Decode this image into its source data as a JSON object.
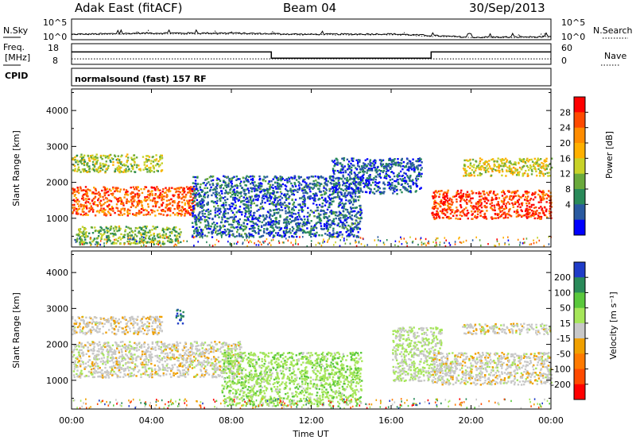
{
  "header": {
    "station": "Adak East (fitACF)",
    "beam": "Beam 04",
    "date": "30/Sep/2013"
  },
  "noise_panel": {
    "left_label": "N.Sky",
    "right_label": "N.Search",
    "left_ticks": [
      "10^5",
      "10^0"
    ],
    "right_ticks": [
      "10^5",
      "10^0"
    ]
  },
  "freq_panel": {
    "left_label_1": "Freq.",
    "left_label_2": "[MHz]",
    "right_label": "Nave",
    "left_ticks": [
      "18",
      "8"
    ],
    "right_ticks": [
      "60",
      "0"
    ]
  },
  "cpid": {
    "label": "CPID",
    "value": "normalsound (fast) 157 RF"
  },
  "x_axis": {
    "label": "Time UT",
    "ticks": [
      "00:00",
      "04:00",
      "08:00",
      "12:00",
      "16:00",
      "20:00",
      "00:00"
    ]
  },
  "power_colorbar": {
    "label": "Power [dB]",
    "ticks": [
      "28",
      "24",
      "20",
      "16",
      "12",
      "8",
      "4"
    ],
    "colors": [
      "#ff0000",
      "#ff4a00",
      "#ff8c00",
      "#ffb000",
      "#c8d228",
      "#6aaa3c",
      "#2a8a5a",
      "#2a5aa0",
      "#0000ff"
    ]
  },
  "velocity_colorbar": {
    "label": "Velocity [m s⁻¹]",
    "ticks": [
      "200",
      "100",
      "50",
      "15",
      "-15",
      "-50",
      "-100",
      "-200"
    ],
    "colors": [
      "#1f3cc8",
      "#2a8a5a",
      "#5ac83c",
      "#a6e65a",
      "#c8c8c8",
      "#f0a000",
      "#ff7a00",
      "#ff4a00",
      "#ff0000"
    ]
  },
  "chart_data": [
    {
      "type": "line",
      "title": "Adak East (fitACF)",
      "xlabel": "Time UT",
      "xlim": [
        "00:00",
        "24:00"
      ],
      "series": [
        {
          "name": "N.Sky",
          "log_scale": true,
          "ylim_log10": [
            0,
            5
          ],
          "x": [
            "00:00",
            "04:00",
            "08:00",
            "12:00",
            "16:00",
            "20:00",
            "24:00"
          ],
          "values_log10": [
            1.3,
            1.6,
            1.6,
            1.3,
            1.4,
            0.6,
            0.7
          ]
        },
        {
          "name": "N.Search",
          "log_scale": true,
          "line_style": "dotted",
          "ylim_log10": [
            0,
            5
          ],
          "x": [
            "00:00",
            "04:00",
            "08:00",
            "12:00",
            "16:00",
            "20:00",
            "24:00"
          ],
          "values_log10": [
            1.2,
            1.4,
            1.4,
            1.2,
            1.2,
            0.5,
            0.6
          ]
        }
      ]
    },
    {
      "type": "line",
      "series": [
        {
          "name": "Freq. [MHz]",
          "ylim": [
            8,
            18
          ],
          "x": [
            "00:00",
            "10:00",
            "10:00",
            "18:00",
            "18:00",
            "24:00"
          ],
          "values": [
            14,
            14,
            11,
            11,
            14,
            14
          ]
        },
        {
          "name": "Nave",
          "line_style": "dotted",
          "ylim": [
            0,
            60
          ],
          "x": [
            "00:00",
            "24:00"
          ],
          "values": [
            16,
            16
          ]
        }
      ]
    },
    {
      "type": "heatmap",
      "title": "Power [dB]",
      "xlabel": "Time UT",
      "ylabel": "Slant Range [km]",
      "ylim": [
        200,
        4600
      ],
      "yticks": [
        1000,
        2000,
        3000,
        4000
      ],
      "value_range": [
        0,
        30
      ],
      "features": [
        {
          "t_start": 0.0,
          "t_end": 6.2,
          "range_low_km": 1100,
          "range_high_km": 1900,
          "level_db": 24
        },
        {
          "t_start": 0.0,
          "t_end": 4.5,
          "range_low_km": 2300,
          "range_high_km": 2800,
          "level_db": 14
        },
        {
          "t_start": 0.2,
          "t_end": 5.5,
          "range_low_km": 300,
          "range_high_km": 800,
          "level_db": 12
        },
        {
          "t_start": 6.0,
          "t_end": 14.5,
          "range_low_km": 500,
          "range_high_km": 2200,
          "level_db": 6
        },
        {
          "t_start": 13.0,
          "t_end": 17.5,
          "range_low_km": 1700,
          "range_high_km": 2700,
          "level_db": 5
        },
        {
          "t_start": 18.0,
          "t_end": 24.0,
          "range_low_km": 1000,
          "range_high_km": 1800,
          "level_db": 26
        },
        {
          "t_start": 19.5,
          "t_end": 24.0,
          "range_low_km": 2200,
          "range_high_km": 2700,
          "level_db": 16
        }
      ]
    },
    {
      "type": "heatmap",
      "title": "Velocity [m s⁻¹]",
      "xlabel": "Time UT",
      "ylabel": "Slant Range [km]",
      "ylim": [
        200,
        4600
      ],
      "yticks": [
        1000,
        2000,
        3000,
        4000
      ],
      "value_range": [
        -250,
        250
      ],
      "features": [
        {
          "t_start": 0.0,
          "t_end": 8.5,
          "range_low_km": 1100,
          "range_high_km": 2100,
          "velocity_ms": 0
        },
        {
          "t_start": 0.0,
          "t_end": 4.5,
          "range_low_km": 2300,
          "range_high_km": 2800,
          "velocity_ms": -10
        },
        {
          "t_start": 5.2,
          "t_end": 5.6,
          "range_low_km": 2600,
          "range_high_km": 3000,
          "velocity_ms": 200
        },
        {
          "t_start": 7.5,
          "t_end": 14.5,
          "range_low_km": 300,
          "range_high_km": 1800,
          "velocity_ms": 60
        },
        {
          "t_start": 16.0,
          "t_end": 18.5,
          "range_low_km": 1000,
          "range_high_km": 2500,
          "velocity_ms": 30
        },
        {
          "t_start": 18.0,
          "t_end": 24.0,
          "range_low_km": 900,
          "range_high_km": 1800,
          "velocity_ms": 0
        },
        {
          "t_start": 19.5,
          "t_end": 24.0,
          "range_low_km": 2300,
          "range_high_km": 2600,
          "velocity_ms": 0
        }
      ]
    }
  ]
}
